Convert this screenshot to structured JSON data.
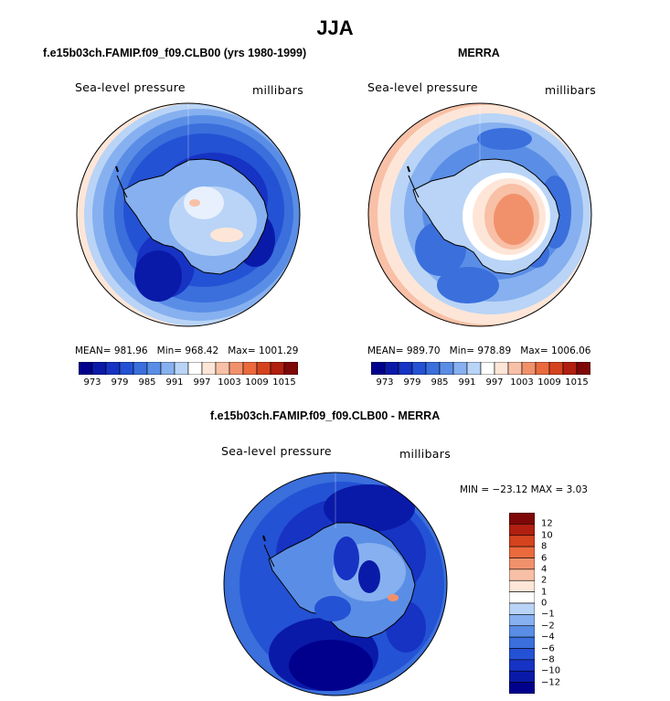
{
  "title": "JJA",
  "colors": {
    "diverging": [
      "#00008c",
      "#0a1aa8",
      "#1633c4",
      "#2452d4",
      "#3a6fdc",
      "#5a8ee6",
      "#86b0ef",
      "#b9d4f6",
      "#ffffff",
      "#fde6d8",
      "#f8c0a6",
      "#f1916c",
      "#ea6a3e",
      "#d4431e",
      "#b01f10",
      "#7e0707"
    ],
    "land_outline": "#000000",
    "antarctica_light": "#d5e4fb"
  },
  "panels": {
    "model": {
      "title": "f.e15b03ch.FAMIP.f09_f09.CLB00 (yrs 1980-1999)",
      "variable": "Sea-level pressure",
      "units": "millibars",
      "stats": {
        "mean_label": "MEAN=",
        "mean": "981.96",
        "min_label": "Min=",
        "min": "968.42",
        "max_label": "Max=",
        "max": "1001.29"
      }
    },
    "obs": {
      "title": "MERRA",
      "variable": "Sea-level pressure",
      "units": "millibars",
      "stats": {
        "mean_label": "MEAN=",
        "mean": "989.70",
        "min_label": "Min=",
        "min": "978.89",
        "max_label": "Max=",
        "max": "1006.06"
      }
    },
    "diff": {
      "title": "f.e15b03ch.FAMIP.f09_f09.CLB00 - MERRA",
      "variable": "Sea-level pressure",
      "units": "millibars",
      "minmax": "MIN = −23.12 MAX =   3.03"
    }
  },
  "chart_data": [
    {
      "type": "heatmap",
      "projection": "south polar stereographic",
      "title": "f.e15b03ch.FAMIP.f09_f09.CLB00 (yrs 1980-1999)",
      "variable": "Sea-level pressure",
      "units": "millibars",
      "stats": {
        "mean": 981.96,
        "min": 968.42,
        "max": 1001.29
      },
      "colorbar_ticks": [
        "973",
        "979",
        "985",
        "991",
        "997",
        "1003",
        "1009",
        "1015"
      ],
      "n_color_levels": 16
    },
    {
      "type": "heatmap",
      "projection": "south polar stereographic",
      "title": "MERRA",
      "variable": "Sea-level pressure",
      "units": "millibars",
      "stats": {
        "mean": 989.7,
        "min": 978.89,
        "max": 1006.06
      },
      "colorbar_ticks": [
        "973",
        "979",
        "985",
        "991",
        "997",
        "1003",
        "1009",
        "1015"
      ],
      "n_color_levels": 16
    },
    {
      "type": "heatmap",
      "projection": "south polar stereographic",
      "title": "f.e15b03ch.FAMIP.f09_f09.CLB00 - MERRA",
      "variable": "Sea-level pressure",
      "units": "millibars",
      "stats": {
        "min": -23.12,
        "max": 3.03
      },
      "colorbar_ticks": [
        "12",
        "10",
        "8",
        "6",
        "4",
        "2",
        "1",
        "0",
        "−1",
        "−2",
        "−4",
        "−6",
        "−8",
        "−10",
        "−12"
      ],
      "n_color_levels": 16
    }
  ]
}
